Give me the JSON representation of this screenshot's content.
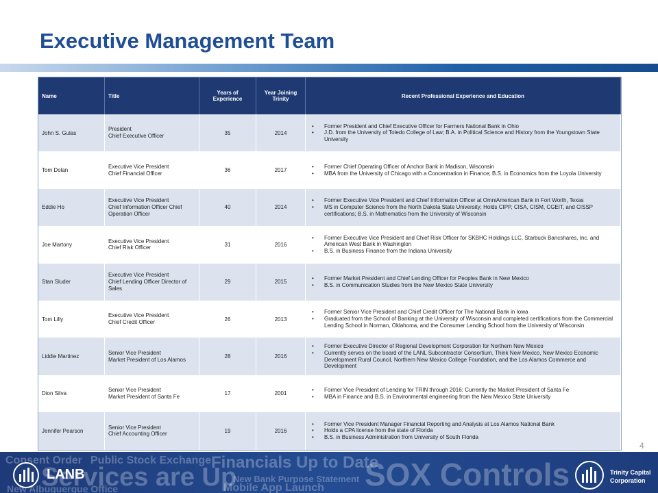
{
  "header": {
    "title": "Executive Management Team"
  },
  "table": {
    "columns": [
      "Name",
      "Title",
      "Years of Experience",
      "Year Joining Trinity",
      "Recent Professional Experience and Education"
    ],
    "rows": [
      {
        "name": "John S. Gulas",
        "title": [
          "President",
          "Chief Executive Officer"
        ],
        "years": 35,
        "joined": 2014,
        "experience": [
          "Former President and Chief Executive Officer for Farmers National Bank in Ohio",
          "J.D. from the University of Toledo College of Law; B.A. in Political Science and History from the Youngstown State University"
        ]
      },
      {
        "name": "Tom Dolan",
        "title": [
          "Executive Vice President",
          "Chief Financial Officer"
        ],
        "years": 36,
        "joined": 2017,
        "experience": [
          "Former Chief Operating Officer of Anchor Bank in Madison, Wisconsin",
          "MBA from the University of Chicago with a Concentration in Finance; B.S. in Economics from the Loyola University"
        ]
      },
      {
        "name": "Eddie Ho",
        "title": [
          "Executive Vice President",
          "Chief Information Officer Chief Operation Officer"
        ],
        "years": 40,
        "joined": 2014,
        "experience": [
          "Former Executive Vice President and Chief Information Officer at OmniAmerican Bank in Fort Worth, Texas",
          "MS in Computer Science from the North Dakota State University; Holds CIPP, CISA, CISM, CGEIT, and CISSP certifications; B.S. in Mathematics from the University of Wisconsin"
        ]
      },
      {
        "name": "Joe Martony",
        "title": [
          "Executive Vice President",
          "Chief Risk Officer"
        ],
        "years": 31,
        "joined": 2016,
        "experience": [
          "Former Executive Vice President and Chief Risk Officer for SKBHC Holdings LLC, Starbuck Bancshares, Inc. and American West Bank in Washington",
          "B.S. in Business Finance from the Indiana University"
        ]
      },
      {
        "name": "Stan Sluder",
        "title": [
          "Executive Vice President",
          "Chief Lending Officer Director of Sales"
        ],
        "years": 29,
        "joined": 2015,
        "experience": [
          "Former  Market President and Chief Lending Officer for Peoples Bank in New Mexico",
          "B.S. in Communication Studies from the New Mexico State University"
        ]
      },
      {
        "name": "Tom Lilly",
        "title": [
          "Executive Vice President",
          "Chief Credit Officer"
        ],
        "years": 26,
        "joined": 2013,
        "experience": [
          "Former Senior Vice President and Chief Credit Officer for The National Bank in Iowa",
          "Graduated from the School of Banking at the University of Wisconsin and completed certifications from the Commercial Lending School in Norman, Oklahoma, and the Consumer Lending School from the University of Wisconsin"
        ]
      },
      {
        "name": "Liddie Martinez",
        "title": [
          "Senior Vice President",
          "Market President of Los Alamos"
        ],
        "years": 28,
        "joined": 2016,
        "experience": [
          "Former Executive Director of Regional Development Corporation for Northern New Mexico",
          "Currently serves on the board of the LANL Subcontractor Consortium, Think New Mexico, New Mexico Economic Development Rural Council, Northern New Mexico College Foundation, and the Los Alamos Commerce and Development"
        ]
      },
      {
        "name": "Dion Silva",
        "title": [
          "Senior Vice President",
          "Market President of Santa Fe"
        ],
        "years": 17,
        "joined": 2001,
        "experience": [
          "Former Vice President of Lending for TRIN through 2016; Currently the Market President of Santa Fe",
          "MBA in Finance and B.S. in Environmental engineering from the New Mexico State University"
        ]
      },
      {
        "name": "Jennifer Pearson",
        "title": [
          "Senior Vice President",
          "Chief Accounting Officer"
        ],
        "years": 19,
        "joined": 2016,
        "experience": [
          "Former Vice President Manager Financial Reporting and Analysis at Los Alamos National Bank",
          "Holds a CPA license from the state of Florida",
          "B.S. in Business Administration from University of South Florida"
        ]
      }
    ]
  },
  "page_number": 4,
  "footer": {
    "words": [
      "Consent Order",
      "Public Stock Exchange",
      "Financials Up to Date",
      "Services are Up",
      "New Bank Purpose Statement",
      "SOX Controls",
      "New Albuquerque Office",
      "Mobile App Launch"
    ],
    "left_logo": "LANB",
    "right_logo": [
      "Trinity Capital",
      "Corporation"
    ]
  }
}
